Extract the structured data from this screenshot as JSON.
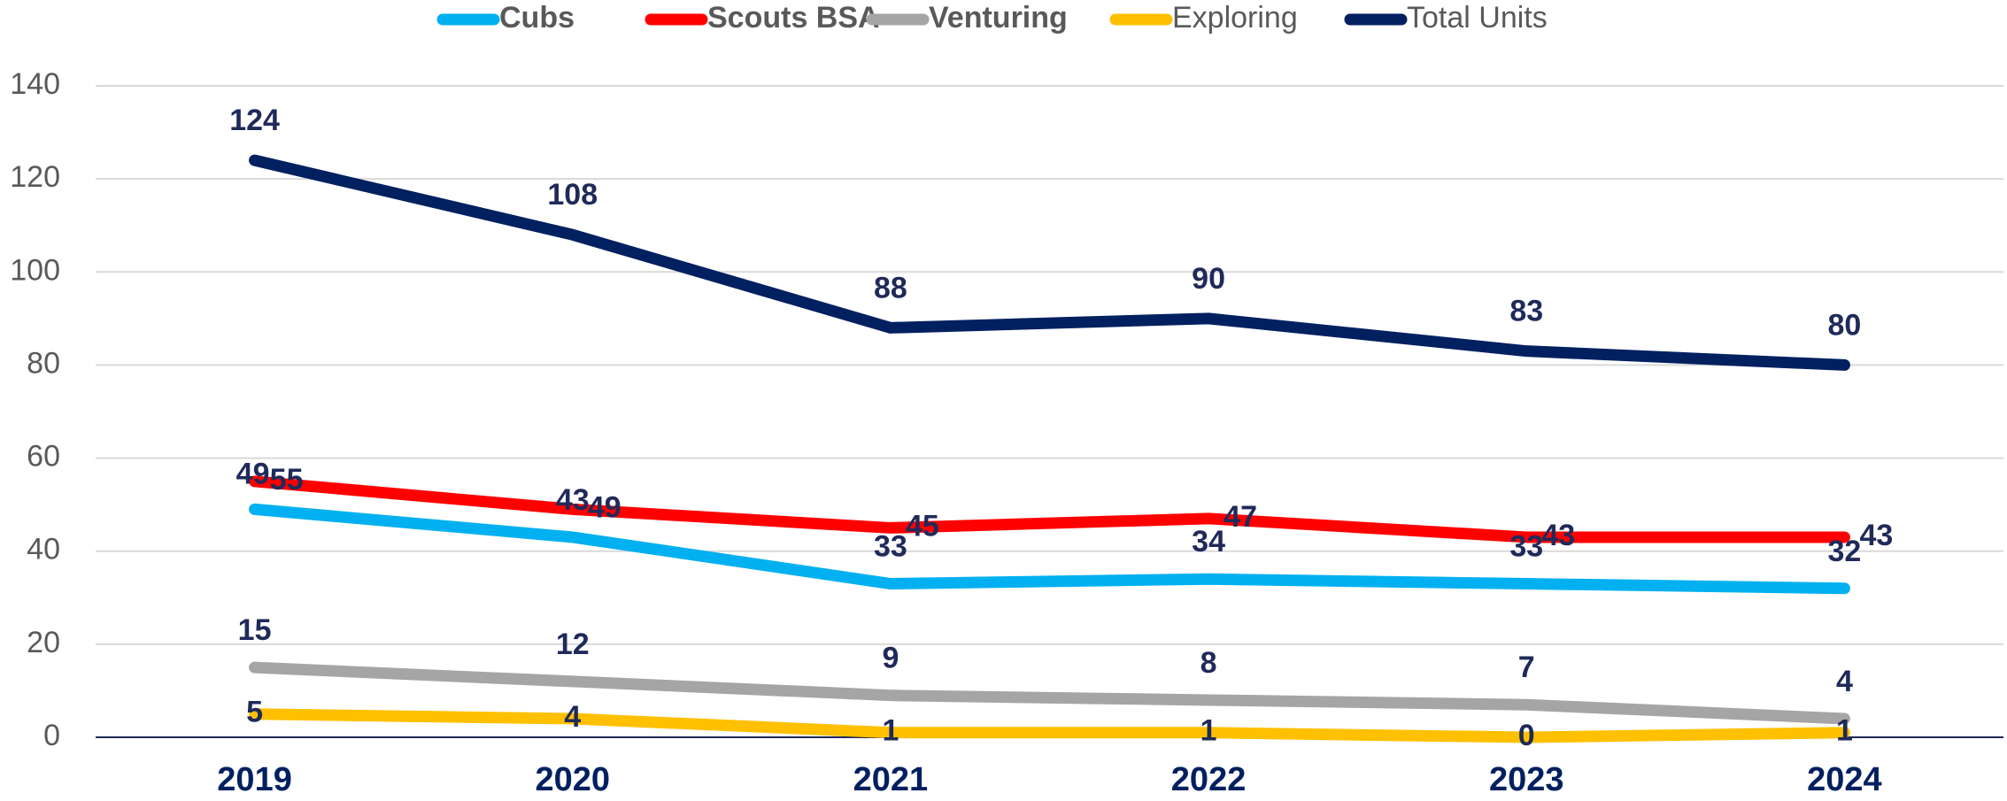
{
  "chart_data": {
    "type": "line",
    "categories": [
      "2019",
      "2020",
      "2021",
      "2022",
      "2023",
      "2024"
    ],
    "series": [
      {
        "name": "Cubs",
        "color": "#00b0f0",
        "values": [
          49,
          43,
          33,
          34,
          33,
          32
        ]
      },
      {
        "name": "Scouts BSA",
        "color": "#ff0000",
        "values": [
          55,
          49,
          45,
          47,
          43,
          43
        ]
      },
      {
        "name": "Venturing",
        "color": "#a5a5a5",
        "values": [
          15,
          12,
          9,
          8,
          7,
          4
        ]
      },
      {
        "name": "Exploring",
        "color": "#ffc000",
        "values": [
          5,
          4,
          1,
          1,
          0,
          1
        ]
      },
      {
        "name": "Total Units",
        "color": "#002060",
        "values": [
          124,
          108,
          88,
          90,
          83,
          80
        ]
      }
    ],
    "ylim": [
      0,
      140
    ],
    "yticks": [
      0,
      20,
      40,
      60,
      80,
      100,
      120,
      140
    ],
    "grid": true,
    "legend": "top"
  }
}
